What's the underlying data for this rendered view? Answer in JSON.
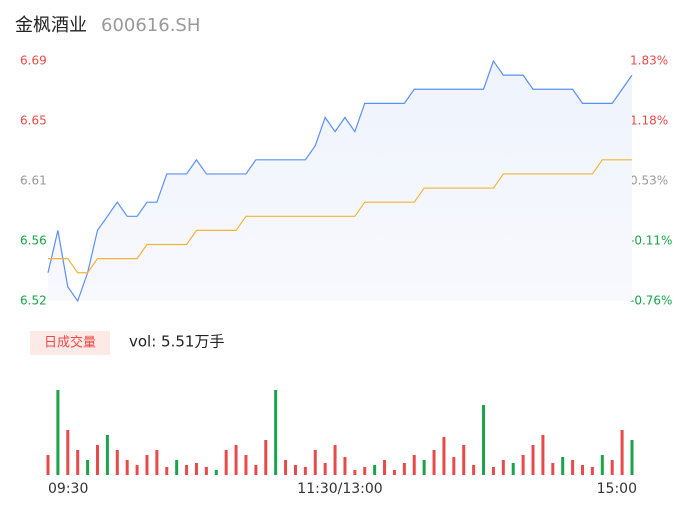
{
  "header": {
    "title": "金枫酒业",
    "code": "600616.SH"
  },
  "chart_data": {
    "type": "line",
    "xlim": [
      0,
      59
    ],
    "xticks": [
      {
        "value": 0,
        "label": "09:30"
      },
      {
        "value": 29.5,
        "label": "11:30/13:00"
      },
      {
        "value": 59,
        "label": "15:00"
      }
    ],
    "ylim": [
      6.52,
      6.69
    ],
    "yticks": [
      {
        "value": 6.69,
        "label": "6.69"
      },
      {
        "value": 6.6475,
        "label": "6.65"
      },
      {
        "value": 6.605,
        "label": "6.61"
      },
      {
        "value": 6.5625,
        "label": "6.56"
      },
      {
        "value": 6.52,
        "label": "6.52"
      }
    ],
    "y2lim": [
      -0.76,
      1.83
    ],
    "y2ticks": [
      {
        "value": 1.83,
        "label": "1.83%"
      },
      {
        "value": 1.1825,
        "label": "1.18%"
      },
      {
        "value": 0.535,
        "label": "0.53%"
      },
      {
        "value": -0.1125,
        "label": "-0.11%"
      },
      {
        "value": -0.76,
        "label": "-0.76%"
      }
    ],
    "series": [
      {
        "color": "#5b8ff9",
        "values": [
          6.54,
          6.57,
          6.53,
          6.52,
          6.54,
          6.57,
          6.58,
          6.59,
          6.58,
          6.58,
          6.59,
          6.59,
          6.61,
          6.61,
          6.61,
          6.62,
          6.61,
          6.61,
          6.61,
          6.61,
          6.61,
          6.62,
          6.62,
          6.62,
          6.62,
          6.62,
          6.62,
          6.63,
          6.65,
          6.64,
          6.65,
          6.64,
          6.66,
          6.66,
          6.66,
          6.66,
          6.66,
          6.67,
          6.67,
          6.67,
          6.67,
          6.67,
          6.67,
          6.67,
          6.67,
          6.69,
          6.68,
          6.68,
          6.68,
          6.67,
          6.67,
          6.67,
          6.67,
          6.67,
          6.66,
          6.66,
          6.66,
          6.66,
          6.67,
          6.68
        ]
      },
      {
        "color": "#f4b43a",
        "values": [
          6.55,
          6.55,
          6.55,
          6.54,
          6.54,
          6.55,
          6.55,
          6.55,
          6.55,
          6.55,
          6.56,
          6.56,
          6.56,
          6.56,
          6.56,
          6.57,
          6.57,
          6.57,
          6.57,
          6.57,
          6.58,
          6.58,
          6.58,
          6.58,
          6.58,
          6.58,
          6.58,
          6.58,
          6.58,
          6.58,
          6.58,
          6.58,
          6.59,
          6.59,
          6.59,
          6.59,
          6.59,
          6.59,
          6.6,
          6.6,
          6.6,
          6.6,
          6.6,
          6.6,
          6.6,
          6.6,
          6.61,
          6.61,
          6.61,
          6.61,
          6.61,
          6.61,
          6.61,
          6.61,
          6.61,
          6.61,
          6.62,
          6.62,
          6.62,
          6.62
        ]
      }
    ],
    "volume": {
      "label": "日成交量",
      "text": "vol: 5.51万手",
      "ylim": [
        0,
        90
      ],
      "values": [
        20,
        85,
        45,
        25,
        15,
        30,
        40,
        25,
        15,
        10,
        20,
        25,
        8,
        15,
        10,
        12,
        8,
        5,
        25,
        30,
        20,
        10,
        35,
        85,
        15,
        10,
        8,
        25,
        12,
        30,
        18,
        5,
        8,
        10,
        15,
        5,
        12,
        20,
        15,
        25,
        38,
        18,
        30,
        10,
        70,
        8,
        15,
        12,
        20,
        30,
        40,
        12,
        18,
        15,
        10,
        8,
        20,
        15,
        45,
        35
      ],
      "colors": [
        "#e84a4a",
        "#1aa34a",
        "#e84a4a",
        "#e84a4a",
        "#1aa34a",
        "#e84a4a",
        "#1aa34a",
        "#e84a4a",
        "#e84a4a",
        "#e84a4a",
        "#e84a4a",
        "#e84a4a",
        "#e84a4a",
        "#1aa34a",
        "#e84a4a",
        "#e84a4a",
        "#e84a4a",
        "#1aa34a",
        "#e84a4a",
        "#e84a4a",
        "#e84a4a",
        "#e84a4a",
        "#e84a4a",
        "#1aa34a",
        "#e84a4a",
        "#e84a4a",
        "#e84a4a",
        "#e84a4a",
        "#e84a4a",
        "#e84a4a",
        "#e84a4a",
        "#e84a4a",
        "#e84a4a",
        "#1aa34a",
        "#e84a4a",
        "#e84a4a",
        "#e84a4a",
        "#e84a4a",
        "#1aa34a",
        "#e84a4a",
        "#e84a4a",
        "#e84a4a",
        "#e84a4a",
        "#e84a4a",
        "#1aa34a",
        "#e84a4a",
        "#e84a4a",
        "#1aa34a",
        "#e84a4a",
        "#e84a4a",
        "#e84a4a",
        "#e84a4a",
        "#1aa34a",
        "#e84a4a",
        "#e84a4a",
        "#e84a4a",
        "#1aa34a",
        "#e84a4a",
        "#e84a4a",
        "#1aa34a"
      ]
    }
  }
}
